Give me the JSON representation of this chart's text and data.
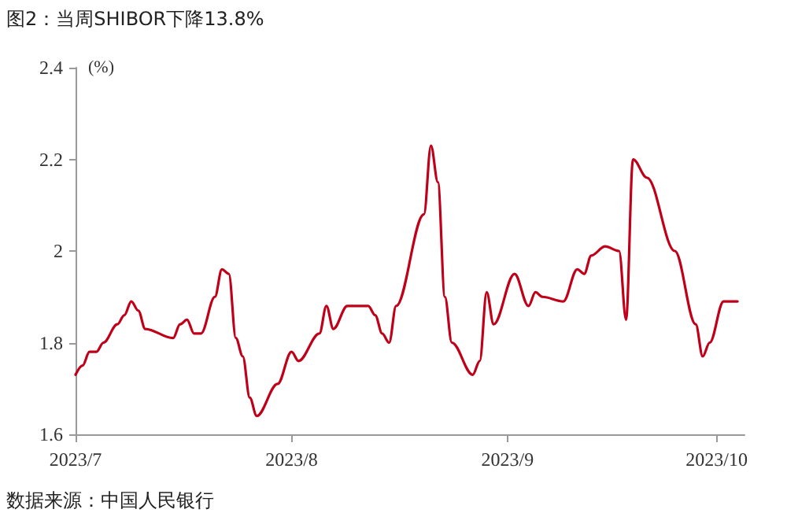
{
  "chart_data": {
    "type": "line",
    "title": "图2：当周SHIBOR下降13.8%",
    "ylabel": "(%)",
    "annotations": [
      "数据来源：中国人民银行"
    ],
    "x": [
      "2023-07-01",
      "2023-07-02",
      "2023-07-03",
      "2023-07-04",
      "2023-07-05",
      "2023-07-07",
      "2023-07-08",
      "2023-07-09",
      "2023-07-10",
      "2023-07-11",
      "2023-07-15",
      "2023-07-16",
      "2023-07-17",
      "2023-07-18",
      "2023-07-19",
      "2023-07-21",
      "2023-07-22",
      "2023-07-23",
      "2023-07-24",
      "2023-07-25",
      "2023-07-26",
      "2023-07-27",
      "2023-07-30",
      "2023-08-01",
      "2023-08-02",
      "2023-08-05",
      "2023-08-06",
      "2023-08-07",
      "2023-08-09",
      "2023-08-12",
      "2023-08-13",
      "2023-08-14",
      "2023-08-15",
      "2023-08-16",
      "2023-08-20",
      "2023-08-21",
      "2023-08-22",
      "2023-08-23",
      "2023-08-24",
      "2023-08-27",
      "2023-08-28",
      "2023-08-29",
      "2023-08-30",
      "2023-09-02",
      "2023-09-04",
      "2023-09-05",
      "2023-09-06",
      "2023-09-09",
      "2023-09-11",
      "2023-09-12",
      "2023-09-13",
      "2023-09-15",
      "2023-09-17",
      "2023-09-18",
      "2023-09-19",
      "2023-09-21",
      "2023-09-25",
      "2023-09-28",
      "2023-09-29",
      "2023-09-30",
      "2023-10-02",
      "2023-10-03",
      "2023-10-04"
    ],
    "series": [
      {
        "color": "#c00018",
        "values": [
          1.73,
          1.75,
          1.78,
          1.78,
          1.8,
          1.84,
          1.86,
          1.89,
          1.87,
          1.83,
          1.81,
          1.84,
          1.85,
          1.82,
          1.82,
          1.9,
          1.96,
          1.95,
          1.81,
          1.77,
          1.68,
          1.64,
          1.71,
          1.78,
          1.76,
          1.82,
          1.88,
          1.83,
          1.88,
          1.88,
          1.86,
          1.82,
          1.8,
          1.88,
          2.08,
          2.23,
          2.15,
          1.9,
          1.8,
          1.73,
          1.76,
          1.91,
          1.84,
          1.95,
          1.88,
          1.91,
          1.9,
          1.89,
          1.96,
          1.95,
          1.99,
          2.01,
          2.0,
          1.85,
          2.2,
          2.16,
          2.0,
          1.84,
          1.77,
          1.8,
          1.89,
          1.89,
          1.89
        ]
      }
    ],
    "xlim": [
      "2023-07-01",
      "2023-10-05"
    ],
    "xticks": [
      {
        "value": "2023-07-01",
        "label": "2023/7"
      },
      {
        "value": "2023-08-01",
        "label": "2023/8"
      },
      {
        "value": "2023-09-01",
        "label": "2023/9"
      },
      {
        "value": "2023-10-01",
        "label": "2023/10"
      }
    ],
    "ylim": [
      1.6,
      2.4
    ],
    "yticks": [
      1.6,
      1.8,
      2,
      2.2,
      2.4
    ],
    "grid": false,
    "marker": "none",
    "line_style": "solid"
  }
}
